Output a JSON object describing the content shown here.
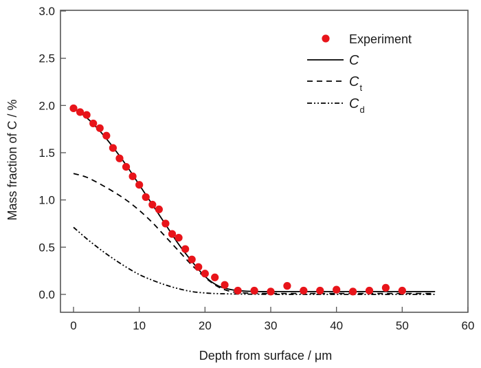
{
  "chart_data": {
    "type": "line",
    "title": "",
    "xlabel": "Depth from surface / μm",
    "ylabel": "Mass fraction of C / %",
    "xlim": [
      -2,
      60
    ],
    "ylim": [
      -0.2,
      3.0
    ],
    "xticks": [
      0,
      10,
      20,
      30,
      40,
      50,
      60
    ],
    "xtick_labels": [
      "0",
      "10",
      "20",
      "30",
      "40",
      "50",
      "60"
    ],
    "yticks": [
      0.0,
      0.5,
      1.0,
      1.5,
      2.0,
      2.5,
      3.0
    ],
    "ytick_labels": [
      "0.0",
      "0.5",
      "1.0",
      "1.5",
      "2.0",
      "2.5",
      "3.0"
    ],
    "grid": false,
    "legend_position": "top-right",
    "series": [
      {
        "name": "Experiment",
        "kind": "scatter",
        "color": "#e8141a",
        "x": [
          0,
          1,
          2,
          3,
          4,
          5,
          6,
          7,
          8,
          9,
          10,
          11,
          12,
          13,
          14,
          15,
          16,
          17,
          18,
          19,
          20,
          21.5,
          23,
          25,
          27.5,
          30,
          32.5,
          35,
          37.5,
          40,
          42.5,
          45,
          47.5,
          50
        ],
        "y": [
          1.97,
          1.93,
          1.9,
          1.81,
          1.76,
          1.68,
          1.55,
          1.44,
          1.35,
          1.25,
          1.16,
          1.03,
          0.95,
          0.9,
          0.75,
          0.64,
          0.6,
          0.48,
          0.37,
          0.29,
          0.22,
          0.18,
          0.1,
          0.04,
          0.04,
          0.03,
          0.09,
          0.04,
          0.04,
          0.05,
          0.03,
          0.04,
          0.07,
          0.04
        ]
      },
      {
        "name": "C",
        "subscript": "",
        "kind": "line",
        "dash": "solid",
        "color": "#000000",
        "x": [
          0,
          2,
          4,
          6,
          8,
          10,
          12,
          14,
          16,
          18,
          20,
          22,
          24,
          26,
          28,
          30,
          35,
          40,
          45,
          50,
          55
        ],
        "y": [
          1.97,
          1.87,
          1.73,
          1.56,
          1.37,
          1.16,
          0.95,
          0.74,
          0.53,
          0.35,
          0.19,
          0.09,
          0.05,
          0.035,
          0.03,
          0.03,
          0.03,
          0.03,
          0.03,
          0.03,
          0.03
        ]
      },
      {
        "name": "C",
        "subscript": "t",
        "kind": "line",
        "dash": "dashed",
        "color": "#000000",
        "x": [
          0,
          2,
          4,
          6,
          8,
          10,
          12,
          14,
          16,
          18,
          20,
          22,
          24,
          26,
          28,
          30,
          35,
          40,
          45,
          50,
          55
        ],
        "y": [
          1.28,
          1.24,
          1.17,
          1.09,
          1.0,
          0.89,
          0.76,
          0.61,
          0.46,
          0.31,
          0.18,
          0.08,
          0.03,
          0.015,
          0.01,
          0.01,
          0.01,
          0.01,
          0.01,
          0.01,
          0.01
        ]
      },
      {
        "name": "C",
        "subscript": "d",
        "kind": "line",
        "dash": "dash-dot-dot",
        "color": "#000000",
        "x": [
          0,
          2,
          4,
          6,
          8,
          10,
          12,
          14,
          16,
          18,
          20,
          22,
          24,
          26,
          28,
          30,
          35,
          40,
          45,
          50,
          55
        ],
        "y": [
          0.71,
          0.59,
          0.48,
          0.38,
          0.29,
          0.21,
          0.15,
          0.1,
          0.06,
          0.03,
          0.015,
          0.008,
          0.005,
          0.003,
          0.002,
          0.001,
          0.0,
          0.0,
          0.0,
          0.0,
          0.0
        ]
      }
    ]
  }
}
